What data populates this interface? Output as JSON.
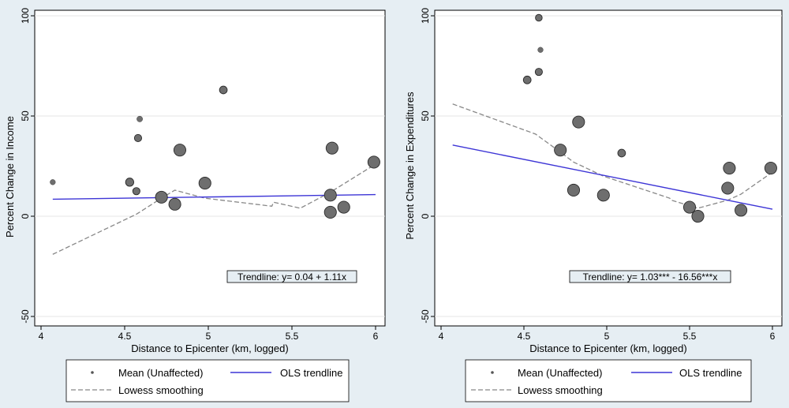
{
  "chart_data": [
    {
      "type": "scatter",
      "ylabel": "Percent Change in Income",
      "xlabel": "Distance to Epicenter (km, logged)",
      "xlim": [
        4,
        6
      ],
      "ylim": [
        -50,
        100
      ],
      "xticks": [
        4,
        4.5,
        5,
        5.5,
        6
      ],
      "yticks": [
        -50,
        0,
        50,
        100
      ],
      "grid": "horizontal",
      "annotation": "Trendline: y= 0.04 + 1.11x",
      "legend": {
        "mean": "Mean (Unaffected)",
        "ols": "OLS trendline",
        "lowess": "Lowess smoothing",
        "placement": "bottom"
      },
      "points": [
        {
          "x": 4.07,
          "y": 17,
          "w": 0.3
        },
        {
          "x": 4.53,
          "y": 17,
          "w": 0.6
        },
        {
          "x": 4.57,
          "y": 12.5,
          "w": 0.5
        },
        {
          "x": 4.58,
          "y": 39,
          "w": 0.5
        },
        {
          "x": 4.59,
          "y": 48.5,
          "w": 0.35
        },
        {
          "x": 4.72,
          "y": 9.5,
          "w": 1.0
        },
        {
          "x": 4.8,
          "y": 6,
          "w": 1.0
        },
        {
          "x": 4.83,
          "y": 33,
          "w": 1.0
        },
        {
          "x": 4.98,
          "y": 16.5,
          "w": 1.0
        },
        {
          "x": 5.09,
          "y": 63,
          "w": 0.55
        },
        {
          "x": 5.73,
          "y": 10.5,
          "w": 1.0
        },
        {
          "x": 5.73,
          "y": 2,
          "w": 1.0
        },
        {
          "x": 5.74,
          "y": 34,
          "w": 1.0
        },
        {
          "x": 5.81,
          "y": 4.5,
          "w": 1.0
        },
        {
          "x": 5.99,
          "y": 27,
          "w": 1.0
        }
      ],
      "ols": [
        {
          "x": 4.07,
          "y": 8.5
        },
        {
          "x": 6.0,
          "y": 10.8
        }
      ],
      "lowess": [
        {
          "x": 4.07,
          "y": -19
        },
        {
          "x": 4.57,
          "y": 1
        },
        {
          "x": 4.72,
          "y": 9
        },
        {
          "x": 4.8,
          "y": 13
        },
        {
          "x": 4.98,
          "y": 9
        },
        {
          "x": 5.38,
          "y": 5
        },
        {
          "x": 5.39,
          "y": 7
        },
        {
          "x": 5.55,
          "y": 4
        },
        {
          "x": 5.73,
          "y": 12
        },
        {
          "x": 6.0,
          "y": 26
        }
      ]
    },
    {
      "type": "scatter",
      "ylabel": "Percent Change in Expenditures",
      "xlabel": "Distance to Epicenter (km, logged)",
      "xlim": [
        4,
        6
      ],
      "ylim": [
        -50,
        100
      ],
      "xticks": [
        4,
        4.5,
        5,
        5.5,
        6
      ],
      "yticks": [
        -50,
        0,
        50,
        100
      ],
      "grid": "horizontal",
      "annotation": "Trendline: y= 1.03*** - 16.56***x",
      "legend": {
        "mean": "Mean (Unaffected)",
        "ols": "OLS trendline",
        "lowess": "Lowess smoothing",
        "placement": "bottom"
      },
      "points": [
        {
          "x": 4.52,
          "y": 68,
          "w": 0.55
        },
        {
          "x": 4.59,
          "y": 99,
          "w": 0.45
        },
        {
          "x": 4.59,
          "y": 72,
          "w": 0.5
        },
        {
          "x": 4.6,
          "y": 83,
          "w": 0.3
        },
        {
          "x": 4.72,
          "y": 33,
          "w": 1.0
        },
        {
          "x": 4.8,
          "y": 13,
          "w": 1.0
        },
        {
          "x": 4.83,
          "y": 47,
          "w": 1.0
        },
        {
          "x": 4.98,
          "y": 10.5,
          "w": 1.0
        },
        {
          "x": 5.09,
          "y": 31.5,
          "w": 0.55
        },
        {
          "x": 5.5,
          "y": 4.5,
          "w": 1.0
        },
        {
          "x": 5.55,
          "y": 0,
          "w": 1.0
        },
        {
          "x": 5.73,
          "y": 14,
          "w": 1.0
        },
        {
          "x": 5.74,
          "y": 24,
          "w": 1.0
        },
        {
          "x": 5.81,
          "y": 3,
          "w": 1.0
        },
        {
          "x": 5.99,
          "y": 24,
          "w": 1.0
        }
      ],
      "ols": [
        {
          "x": 4.07,
          "y": 35.5
        },
        {
          "x": 6.0,
          "y": 3.5
        }
      ],
      "lowess": [
        {
          "x": 4.07,
          "y": 56
        },
        {
          "x": 4.57,
          "y": 41
        },
        {
          "x": 4.72,
          "y": 32
        },
        {
          "x": 4.8,
          "y": 27
        },
        {
          "x": 4.98,
          "y": 20
        },
        {
          "x": 5.38,
          "y": 9
        },
        {
          "x": 5.39,
          "y": 8
        },
        {
          "x": 5.55,
          "y": 4
        },
        {
          "x": 5.73,
          "y": 8
        },
        {
          "x": 5.81,
          "y": 11
        },
        {
          "x": 6.0,
          "y": 22
        }
      ]
    }
  ]
}
